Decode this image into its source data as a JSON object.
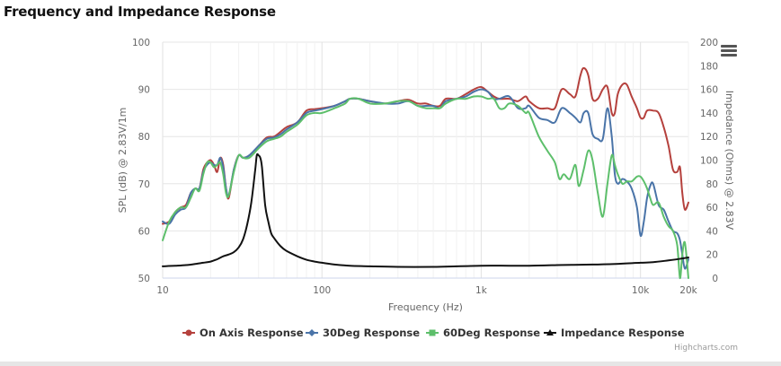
{
  "page": {
    "title": "Frequency and Impedance Response"
  },
  "credits": "Highcharts.com",
  "chart_data": {
    "type": "line",
    "title": "Frequency and Impedance Response",
    "xlabel": "Frequency (Hz)",
    "xscale": "log",
    "xlim": [
      10,
      20000
    ],
    "x_ticks": [
      10,
      100,
      1000,
      10000,
      20000
    ],
    "x_tick_labels": [
      "10",
      "100",
      "1k",
      "10k",
      "20k"
    ],
    "y_left": {
      "label": "SPL (dB) @ 2.83V/1m",
      "range": [
        50,
        100
      ],
      "ticks": [
        50,
        60,
        70,
        80,
        90,
        100
      ],
      "tick_labels": [
        "50",
        "60",
        "70",
        "80",
        "90",
        "100"
      ]
    },
    "y_right": {
      "label": "Impedance (Ohms) @ 2.83V",
      "range": [
        0,
        200
      ],
      "ticks": [
        0,
        20,
        40,
        60,
        80,
        100,
        120,
        140,
        160,
        180,
        200
      ],
      "tick_labels": [
        "0",
        "20",
        "40",
        "60",
        "80",
        "100",
        "120",
        "140",
        "160",
        "180",
        "200"
      ]
    },
    "grid": true,
    "legend_position": "bottom-center",
    "series": [
      {
        "name": "On Axis Response",
        "axis": "left",
        "color": "#b5413d",
        "marker": "circle",
        "points": [
          [
            10,
            61.5
          ],
          [
            11,
            62
          ],
          [
            12,
            64
          ],
          [
            13,
            65
          ],
          [
            14,
            65.5
          ],
          [
            15,
            68
          ],
          [
            16,
            69
          ],
          [
            17,
            69
          ],
          [
            18,
            73
          ],
          [
            19,
            74.5
          ],
          [
            20,
            75
          ],
          [
            21,
            74
          ],
          [
            22,
            72.5
          ],
          [
            23,
            75.5
          ],
          [
            24,
            74
          ],
          [
            25,
            69
          ],
          [
            26,
            67
          ],
          [
            28,
            73
          ],
          [
            30,
            76
          ],
          [
            32,
            75.5
          ],
          [
            35,
            76
          ],
          [
            40,
            78
          ],
          [
            45,
            79.8
          ],
          [
            50,
            80
          ],
          [
            55,
            81
          ],
          [
            60,
            82
          ],
          [
            70,
            83
          ],
          [
            80,
            85.5
          ],
          [
            90,
            85.8
          ],
          [
            100,
            86
          ],
          [
            120,
            86.5
          ],
          [
            140,
            87.5
          ],
          [
            150,
            88
          ],
          [
            170,
            88
          ],
          [
            200,
            87.5
          ],
          [
            250,
            87
          ],
          [
            300,
            87.5
          ],
          [
            350,
            87.8
          ],
          [
            400,
            87
          ],
          [
            450,
            87
          ],
          [
            500,
            86.5
          ],
          [
            550,
            86.5
          ],
          [
            600,
            88
          ],
          [
            700,
            88
          ],
          [
            800,
            89
          ],
          [
            900,
            90
          ],
          [
            1000,
            90.5
          ],
          [
            1100,
            89.5
          ],
          [
            1200,
            88.5
          ],
          [
            1300,
            88
          ],
          [
            1500,
            88
          ],
          [
            1700,
            87.5
          ],
          [
            1900,
            88.5
          ],
          [
            2000,
            87.5
          ],
          [
            2300,
            86
          ],
          [
            2600,
            86
          ],
          [
            2900,
            86
          ],
          [
            3200,
            90
          ],
          [
            3600,
            89
          ],
          [
            3900,
            88.5
          ],
          [
            4200,
            93
          ],
          [
            4400,
            94.5
          ],
          [
            4700,
            93
          ],
          [
            5000,
            88
          ],
          [
            5400,
            88
          ],
          [
            5800,
            90
          ],
          [
            6200,
            90.5
          ],
          [
            6600,
            85
          ],
          [
            6900,
            85
          ],
          [
            7200,
            89
          ],
          [
            7700,
            91
          ],
          [
            8200,
            91
          ],
          [
            8800,
            88.5
          ],
          [
            9500,
            86
          ],
          [
            10000,
            84
          ],
          [
            10500,
            84
          ],
          [
            11000,
            85.5
          ],
          [
            12000,
            85.5
          ],
          [
            13000,
            85
          ],
          [
            14000,
            82
          ],
          [
            15000,
            78
          ],
          [
            16000,
            73
          ],
          [
            17000,
            72.5
          ],
          [
            17700,
            73.5
          ],
          [
            18300,
            68
          ],
          [
            19000,
            64.5
          ],
          [
            20000,
            66
          ]
        ]
      },
      {
        "name": "30Deg Response",
        "axis": "left",
        "color": "#4a74a8",
        "marker": "diamond",
        "points": [
          [
            10,
            62
          ],
          [
            11,
            61.5
          ],
          [
            12,
            63.5
          ],
          [
            13,
            64.5
          ],
          [
            14,
            65
          ],
          [
            15,
            68
          ],
          [
            16,
            69
          ],
          [
            17,
            69
          ],
          [
            18,
            72.5
          ],
          [
            19,
            74
          ],
          [
            20,
            74.5
          ],
          [
            21,
            74
          ],
          [
            22,
            74
          ],
          [
            23,
            75.5
          ],
          [
            24,
            73.5
          ],
          [
            25,
            69
          ],
          [
            26,
            67.5
          ],
          [
            28,
            73
          ],
          [
            30,
            76
          ],
          [
            32,
            75.5
          ],
          [
            35,
            76
          ],
          [
            40,
            78
          ],
          [
            45,
            79.5
          ],
          [
            50,
            79.8
          ],
          [
            55,
            80.5
          ],
          [
            60,
            81.5
          ],
          [
            70,
            83
          ],
          [
            80,
            85
          ],
          [
            90,
            85.5
          ],
          [
            100,
            85.8
          ],
          [
            120,
            86.5
          ],
          [
            140,
            87.5
          ],
          [
            150,
            88
          ],
          [
            170,
            88
          ],
          [
            200,
            87.5
          ],
          [
            250,
            87
          ],
          [
            300,
            87
          ],
          [
            350,
            87.5
          ],
          [
            400,
            86.5
          ],
          [
            450,
            86.5
          ],
          [
            500,
            86.5
          ],
          [
            550,
            86
          ],
          [
            600,
            87.5
          ],
          [
            700,
            88
          ],
          [
            800,
            88.5
          ],
          [
            900,
            89.5
          ],
          [
            1000,
            90
          ],
          [
            1100,
            89.5
          ],
          [
            1200,
            88
          ],
          [
            1300,
            88
          ],
          [
            1500,
            88.5
          ],
          [
            1700,
            86
          ],
          [
            1900,
            86
          ],
          [
            2000,
            86.5
          ],
          [
            2300,
            84
          ],
          [
            2600,
            83.5
          ],
          [
            2900,
            83
          ],
          [
            3200,
            86
          ],
          [
            3600,
            85
          ],
          [
            3900,
            84
          ],
          [
            4200,
            83
          ],
          [
            4400,
            85
          ],
          [
            4700,
            85
          ],
          [
            5000,
            80.5
          ],
          [
            5400,
            79.5
          ],
          [
            5800,
            79.5
          ],
          [
            6200,
            86
          ],
          [
            6600,
            80
          ],
          [
            6900,
            72
          ],
          [
            7200,
            70
          ],
          [
            7700,
            71
          ],
          [
            8200,
            70.5
          ],
          [
            8800,
            69
          ],
          [
            9500,
            65
          ],
          [
            10000,
            59
          ],
          [
            10500,
            62
          ],
          [
            11000,
            67
          ],
          [
            11500,
            69.5
          ],
          [
            12000,
            70
          ],
          [
            13000,
            65.5
          ],
          [
            14000,
            64.5
          ],
          [
            15000,
            62
          ],
          [
            16000,
            60
          ],
          [
            17000,
            59.5
          ],
          [
            17700,
            58
          ],
          [
            18300,
            55
          ],
          [
            19000,
            52
          ],
          [
            20000,
            54
          ]
        ]
      },
      {
        "name": "60Deg Response",
        "axis": "left",
        "color": "#5dbf6b",
        "marker": "square",
        "points": [
          [
            10,
            58
          ],
          [
            11,
            62
          ],
          [
            12,
            64
          ],
          [
            13,
            65
          ],
          [
            14,
            65
          ],
          [
            15,
            67
          ],
          [
            16,
            69
          ],
          [
            17,
            68.5
          ],
          [
            18,
            72
          ],
          [
            19,
            74.5
          ],
          [
            20,
            74.5
          ],
          [
            21,
            73.5
          ],
          [
            22,
            74
          ],
          [
            23,
            74.5
          ],
          [
            24,
            72
          ],
          [
            25,
            68
          ],
          [
            26,
            67.5
          ],
          [
            28,
            72.5
          ],
          [
            30,
            76
          ],
          [
            32,
            75.5
          ],
          [
            35,
            75.5
          ],
          [
            40,
            77.5
          ],
          [
            45,
            79
          ],
          [
            50,
            79.5
          ],
          [
            55,
            80
          ],
          [
            60,
            81
          ],
          [
            70,
            82.5
          ],
          [
            80,
            84.5
          ],
          [
            90,
            85
          ],
          [
            100,
            85
          ],
          [
            120,
            86
          ],
          [
            140,
            87
          ],
          [
            150,
            88
          ],
          [
            170,
            88
          ],
          [
            200,
            87
          ],
          [
            250,
            87
          ],
          [
            300,
            87.5
          ],
          [
            350,
            87.5
          ],
          [
            400,
            86.5
          ],
          [
            450,
            86
          ],
          [
            500,
            86
          ],
          [
            550,
            86
          ],
          [
            600,
            87
          ],
          [
            700,
            88
          ],
          [
            800,
            88
          ],
          [
            900,
            88.5
          ],
          [
            1000,
            88.5
          ],
          [
            1100,
            88
          ],
          [
            1200,
            88
          ],
          [
            1300,
            86
          ],
          [
            1400,
            86
          ],
          [
            1500,
            87
          ],
          [
            1700,
            86.5
          ],
          [
            1900,
            85
          ],
          [
            2000,
            85
          ],
          [
            2300,
            80
          ],
          [
            2600,
            77
          ],
          [
            2900,
            74.5
          ],
          [
            3100,
            71
          ],
          [
            3300,
            72
          ],
          [
            3600,
            71
          ],
          [
            3900,
            74
          ],
          [
            4100,
            69.5
          ],
          [
            4400,
            73
          ],
          [
            4700,
            77
          ],
          [
            5000,
            75
          ],
          [
            5400,
            68
          ],
          [
            5800,
            63
          ],
          [
            6200,
            70
          ],
          [
            6600,
            76
          ],
          [
            6900,
            74
          ],
          [
            7200,
            72
          ],
          [
            7700,
            70
          ],
          [
            8200,
            70.5
          ],
          [
            8800,
            70.5
          ],
          [
            9500,
            71.5
          ],
          [
            10000,
            71.5
          ],
          [
            10500,
            70.5
          ],
          [
            11000,
            69
          ],
          [
            11500,
            67
          ],
          [
            12000,
            65.5
          ],
          [
            13000,
            66
          ],
          [
            14000,
            63
          ],
          [
            15000,
            61
          ],
          [
            16000,
            60
          ],
          [
            17000,
            57
          ],
          [
            17700,
            50
          ],
          [
            18300,
            55
          ],
          [
            19000,
            57.5
          ],
          [
            20000,
            50
          ]
        ]
      },
      {
        "name": "Impedance Response",
        "axis": "right",
        "color": "#111111",
        "marker": "triangle",
        "points": [
          [
            10,
            10
          ],
          [
            12,
            10.5
          ],
          [
            14,
            11
          ],
          [
            16,
            12
          ],
          [
            18,
            13
          ],
          [
            20,
            14
          ],
          [
            22,
            16
          ],
          [
            24,
            18.5
          ],
          [
            26,
            20
          ],
          [
            28,
            22
          ],
          [
            30,
            26
          ],
          [
            32,
            33
          ],
          [
            34,
            46
          ],
          [
            36,
            64
          ],
          [
            38,
            90
          ],
          [
            39,
            104
          ],
          [
            40,
            104
          ],
          [
            41,
            102
          ],
          [
            42,
            94
          ],
          [
            44,
            62
          ],
          [
            46,
            48
          ],
          [
            48,
            38
          ],
          [
            50,
            34
          ],
          [
            55,
            27
          ],
          [
            60,
            23
          ],
          [
            70,
            18.5
          ],
          [
            80,
            15.5
          ],
          [
            90,
            14
          ],
          [
            100,
            13
          ],
          [
            120,
            11.5
          ],
          [
            150,
            10.5
          ],
          [
            200,
            10
          ],
          [
            300,
            9.5
          ],
          [
            500,
            9.5
          ],
          [
            700,
            10
          ],
          [
            1000,
            10.5
          ],
          [
            1500,
            10.5
          ],
          [
            2000,
            10.5
          ],
          [
            3000,
            11
          ],
          [
            5000,
            11.5
          ],
          [
            7000,
            12
          ],
          [
            10000,
            13
          ],
          [
            12000,
            13.5
          ],
          [
            15000,
            15
          ],
          [
            18000,
            16.5
          ],
          [
            20000,
            17.5
          ]
        ]
      }
    ]
  }
}
